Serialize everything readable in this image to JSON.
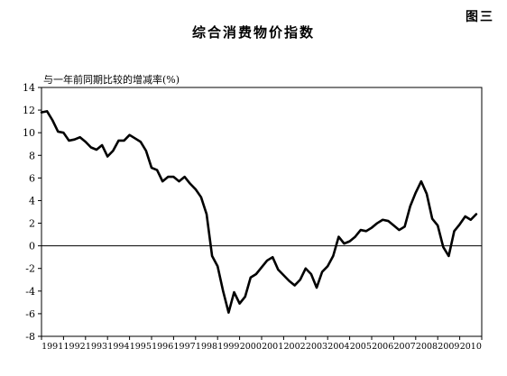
{
  "figure_label": "图三",
  "chart_data": {
    "type": "line",
    "title": "综合消费物价指数",
    "ylabel": "与一年前同期比较的增减率(%)",
    "xlabel": "",
    "ylim": [
      -8,
      14
    ],
    "yticks": [
      -8,
      -6,
      -4,
      -2,
      0,
      2,
      4,
      6,
      8,
      10,
      12,
      14
    ],
    "xlim": [
      1991,
      2011
    ],
    "xticks": [
      "1991",
      "1992",
      "1993",
      "1994",
      "1995",
      "1996",
      "1997",
      "1998",
      "1999",
      "2000",
      "2001",
      "2002",
      "2003",
      "2004",
      "2005",
      "2006",
      "2007",
      "2008",
      "2009",
      "2010"
    ],
    "zero_line": true,
    "grid": false,
    "series": [
      {
        "color": "#000000",
        "points": [
          [
            1991.0,
            11.8
          ],
          [
            1991.25,
            11.9
          ],
          [
            1991.5,
            11.1
          ],
          [
            1991.75,
            10.1
          ],
          [
            1992.0,
            10.0
          ],
          [
            1992.25,
            9.3
          ],
          [
            1992.5,
            9.4
          ],
          [
            1992.75,
            9.6
          ],
          [
            1993.0,
            9.2
          ],
          [
            1993.25,
            8.7
          ],
          [
            1993.5,
            8.5
          ],
          [
            1993.75,
            8.9
          ],
          [
            1994.0,
            7.9
          ],
          [
            1994.25,
            8.4
          ],
          [
            1994.5,
            9.3
          ],
          [
            1994.75,
            9.3
          ],
          [
            1995.0,
            9.8
          ],
          [
            1995.25,
            9.5
          ],
          [
            1995.5,
            9.2
          ],
          [
            1995.75,
            8.4
          ],
          [
            1996.0,
            6.9
          ],
          [
            1996.25,
            6.7
          ],
          [
            1996.5,
            5.7
          ],
          [
            1996.75,
            6.1
          ],
          [
            1997.0,
            6.1
          ],
          [
            1997.25,
            5.7
          ],
          [
            1997.5,
            6.1
          ],
          [
            1997.75,
            5.5
          ],
          [
            1998.0,
            5.0
          ],
          [
            1998.25,
            4.3
          ],
          [
            1998.5,
            2.8
          ],
          [
            1998.75,
            -0.9
          ],
          [
            1999.0,
            -1.8
          ],
          [
            1999.25,
            -4.0
          ],
          [
            1999.5,
            -5.9
          ],
          [
            1999.75,
            -4.1
          ],
          [
            2000.0,
            -5.1
          ],
          [
            2000.25,
            -4.5
          ],
          [
            2000.5,
            -2.8
          ],
          [
            2000.75,
            -2.5
          ],
          [
            2001.0,
            -1.9
          ],
          [
            2001.25,
            -1.3
          ],
          [
            2001.5,
            -1.0
          ],
          [
            2001.75,
            -2.1
          ],
          [
            2002.0,
            -2.6
          ],
          [
            2002.25,
            -3.1
          ],
          [
            2002.5,
            -3.5
          ],
          [
            2002.75,
            -3.0
          ],
          [
            2003.0,
            -2.0
          ],
          [
            2003.25,
            -2.5
          ],
          [
            2003.5,
            -3.7
          ],
          [
            2003.75,
            -2.3
          ],
          [
            2004.0,
            -1.8
          ],
          [
            2004.25,
            -0.9
          ],
          [
            2004.5,
            0.8
          ],
          [
            2004.75,
            0.2
          ],
          [
            2005.0,
            0.4
          ],
          [
            2005.25,
            0.8
          ],
          [
            2005.5,
            1.4
          ],
          [
            2005.75,
            1.3
          ],
          [
            2006.0,
            1.6
          ],
          [
            2006.25,
            2.0
          ],
          [
            2006.5,
            2.3
          ],
          [
            2006.75,
            2.2
          ],
          [
            2007.0,
            1.8
          ],
          [
            2007.25,
            1.4
          ],
          [
            2007.5,
            1.7
          ],
          [
            2007.75,
            3.5
          ],
          [
            2008.0,
            4.7
          ],
          [
            2008.25,
            5.7
          ],
          [
            2008.5,
            4.6
          ],
          [
            2008.75,
            2.4
          ],
          [
            2009.0,
            1.8
          ],
          [
            2009.25,
            -0.1
          ],
          [
            2009.5,
            -0.9
          ],
          [
            2009.75,
            1.3
          ],
          [
            2010.0,
            1.9
          ],
          [
            2010.25,
            2.6
          ],
          [
            2010.5,
            2.3
          ],
          [
            2010.75,
            2.8
          ]
        ]
      }
    ]
  }
}
